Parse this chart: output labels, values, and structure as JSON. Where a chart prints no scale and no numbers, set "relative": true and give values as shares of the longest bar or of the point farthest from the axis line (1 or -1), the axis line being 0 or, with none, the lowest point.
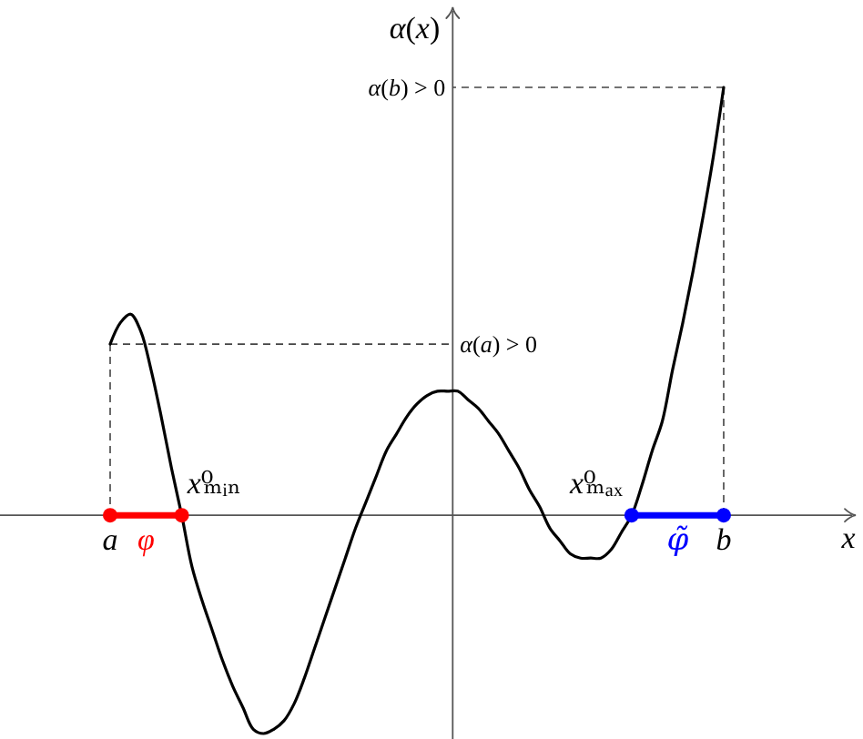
{
  "chart_data": {
    "type": "line",
    "relative": true,
    "xlabel": "x",
    "ylabel": "α(x)",
    "categories": [
      "a",
      null,
      null,
      null,
      null,
      null,
      null,
      null,
      null,
      null,
      null,
      null,
      null,
      null,
      null,
      null,
      null,
      null,
      null,
      null,
      null,
      null,
      null,
      null,
      null,
      null,
      null,
      null,
      null,
      null,
      null,
      null,
      null,
      null,
      null,
      null,
      null,
      null,
      null,
      null,
      null,
      null,
      null,
      null,
      null,
      null,
      null,
      null,
      null,
      null,
      null,
      null,
      null,
      null,
      null,
      null,
      null,
      null,
      null,
      null,
      "b",
      null,
      null,
      null,
      null,
      null,
      null,
      null
    ],
    "series": [
      {
        "color": "#000000",
        "values": [
          0.4,
          0.45,
          0.47,
          0.43,
          0.34,
          0.23,
          0.11,
          0,
          -0.12,
          -0.2,
          -0.27,
          -0.34,
          -0.4,
          -0.45,
          -0.5,
          -0.51,
          -0.5,
          -0.48,
          -0.44,
          -0.38,
          -0.31,
          -0.24,
          -0.17,
          -0.1,
          -0.03,
          0.03,
          0.09,
          0.15,
          0.19,
          0.23,
          0.26,
          0.28,
          0.29,
          0.29,
          0.29,
          0.27,
          0.25,
          0.22,
          0.19,
          0.15,
          0.11,
          0.06,
          0.02,
          -0.03,
          -0.06,
          -0.09,
          -0.1,
          -0.1,
          -0.1,
          -0.08,
          -0.04,
          0,
          0.07,
          0.15,
          0.22,
          0.34,
          0.45,
          0.57,
          0.7,
          0.84,
          1,
          null,
          null,
          null,
          null,
          null,
          null,
          null
        ]
      },
      {
        "name": "φ",
        "type": "line",
        "color": "#ff0000",
        "values": [
          0,
          0,
          0,
          0,
          0,
          0,
          0,
          0,
          null,
          null,
          null,
          null,
          null,
          null,
          null,
          null,
          null,
          null,
          null,
          null,
          null,
          null,
          null,
          null,
          null,
          null,
          null,
          null,
          null,
          null,
          null,
          null,
          null,
          null,
          null,
          null,
          null,
          null,
          null,
          null,
          null,
          null,
          null,
          null,
          null,
          null,
          null,
          null,
          null,
          null,
          null,
          null,
          null,
          null,
          null,
          null,
          null,
          null,
          null,
          null,
          null,
          null,
          null,
          null,
          null,
          null,
          null,
          null
        ]
      },
      {
        "name": "φ̃",
        "type": "line",
        "color": "#0000ff",
        "values": [
          null,
          null,
          null,
          null,
          null,
          null,
          null,
          null,
          null,
          null,
          null,
          null,
          null,
          null,
          null,
          null,
          null,
          null,
          null,
          null,
          null,
          null,
          null,
          null,
          null,
          null,
          null,
          null,
          null,
          null,
          null,
          null,
          null,
          null,
          null,
          null,
          null,
          null,
          null,
          null,
          null,
          null,
          null,
          null,
          null,
          null,
          null,
          null,
          null,
          null,
          null,
          0,
          0,
          0,
          0,
          0,
          0,
          0,
          0,
          0,
          0,
          null,
          null,
          null,
          null,
          null,
          null,
          null
        ]
      },
      {
        "type": "scatter",
        "marker": "circle",
        "x": [
          "a",
          "b"
        ],
        "values": [
          0,
          0
        ],
        "colors": [
          "#ff0000",
          "#0000ff"
        ]
      },
      {
        "name": "x⁰ₘᵢₙ",
        "type": "scatter",
        "marker": "circle",
        "color": "#ff0000",
        "values": [
          null,
          null,
          null,
          null,
          null,
          null,
          null,
          0,
          null,
          null,
          null,
          null,
          null,
          null,
          null,
          null,
          null,
          null,
          null,
          null,
          null,
          null,
          null,
          null,
          null,
          null,
          null,
          null,
          null,
          null,
          null,
          null,
          null,
          null,
          null,
          null,
          null,
          null,
          null,
          null,
          null,
          null,
          null,
          null,
          null,
          null,
          null,
          null,
          null,
          null,
          null,
          null,
          null,
          null,
          null,
          null,
          null,
          null,
          null,
          null,
          null,
          null,
          null,
          null,
          null,
          null,
          null,
          null
        ]
      },
      {
        "name": "x⁰ₘₐₓ",
        "type": "scatter",
        "marker": "circle",
        "color": "#0000ff",
        "values": [
          null,
          null,
          null,
          null,
          null,
          null,
          null,
          null,
          null,
          null,
          null,
          null,
          null,
          null,
          null,
          null,
          null,
          null,
          null,
          null,
          null,
          null,
          null,
          null,
          null,
          null,
          null,
          null,
          null,
          null,
          null,
          null,
          null,
          null,
          null,
          null,
          null,
          null,
          null,
          null,
          null,
          null,
          null,
          null,
          null,
          null,
          null,
          null,
          null,
          null,
          null,
          0,
          null,
          null,
          null,
          null,
          null,
          null,
          null,
          null,
          null,
          null,
          null,
          null,
          null,
          null,
          null,
          null
        ]
      }
    ],
    "annotations": [
      {
        "text": "α(a) > 0",
        "x": "a",
        "y": 0.4
      },
      {
        "text": "α(b) > 0",
        "x": "b",
        "y": 1
      }
    ]
  }
}
